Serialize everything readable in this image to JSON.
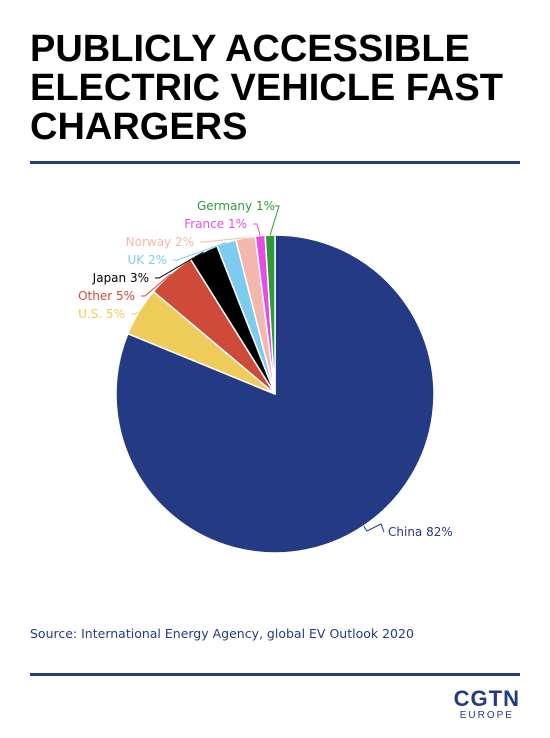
{
  "title_lines": [
    "PUBLICLY ACCESSIBLE",
    "ELECTRIC VEHICLE FAST",
    "CHARGERS"
  ],
  "source": "Source: International Energy Agency, global EV Outlook 2020",
  "logo": {
    "main": "CGTN",
    "sub": "EUROPE"
  },
  "colors": {
    "accent": "#243a84"
  },
  "chart_data": {
    "type": "pie",
    "title": "PUBLICLY ACCESSIBLE ELECTRIC VEHICLE FAST CHARGERS",
    "unit": "%",
    "slices": [
      {
        "name": "China",
        "value": 82,
        "label": "China 82%",
        "color": "#243a84"
      },
      {
        "name": "U.S.",
        "value": 5,
        "label": "U.S. 5%",
        "color": "#efcc5a"
      },
      {
        "name": "Other",
        "value": 5,
        "label": "Other 5%",
        "color": "#cf4a38"
      },
      {
        "name": "Japan",
        "value": 3,
        "label": "Japan 3%",
        "color": "#000000"
      },
      {
        "name": "UK",
        "value": 2,
        "label": "UK 2%",
        "color": "#7ecbf0"
      },
      {
        "name": "Norway",
        "value": 2,
        "label": "Norway 2%",
        "color": "#f4b7ae"
      },
      {
        "name": "France",
        "value": 1,
        "label": "France 1%",
        "color": "#e54ee3"
      },
      {
        "name": "Germany",
        "value": 1,
        "label": "Germany 1%",
        "color": "#2e9a3a"
      }
    ]
  }
}
